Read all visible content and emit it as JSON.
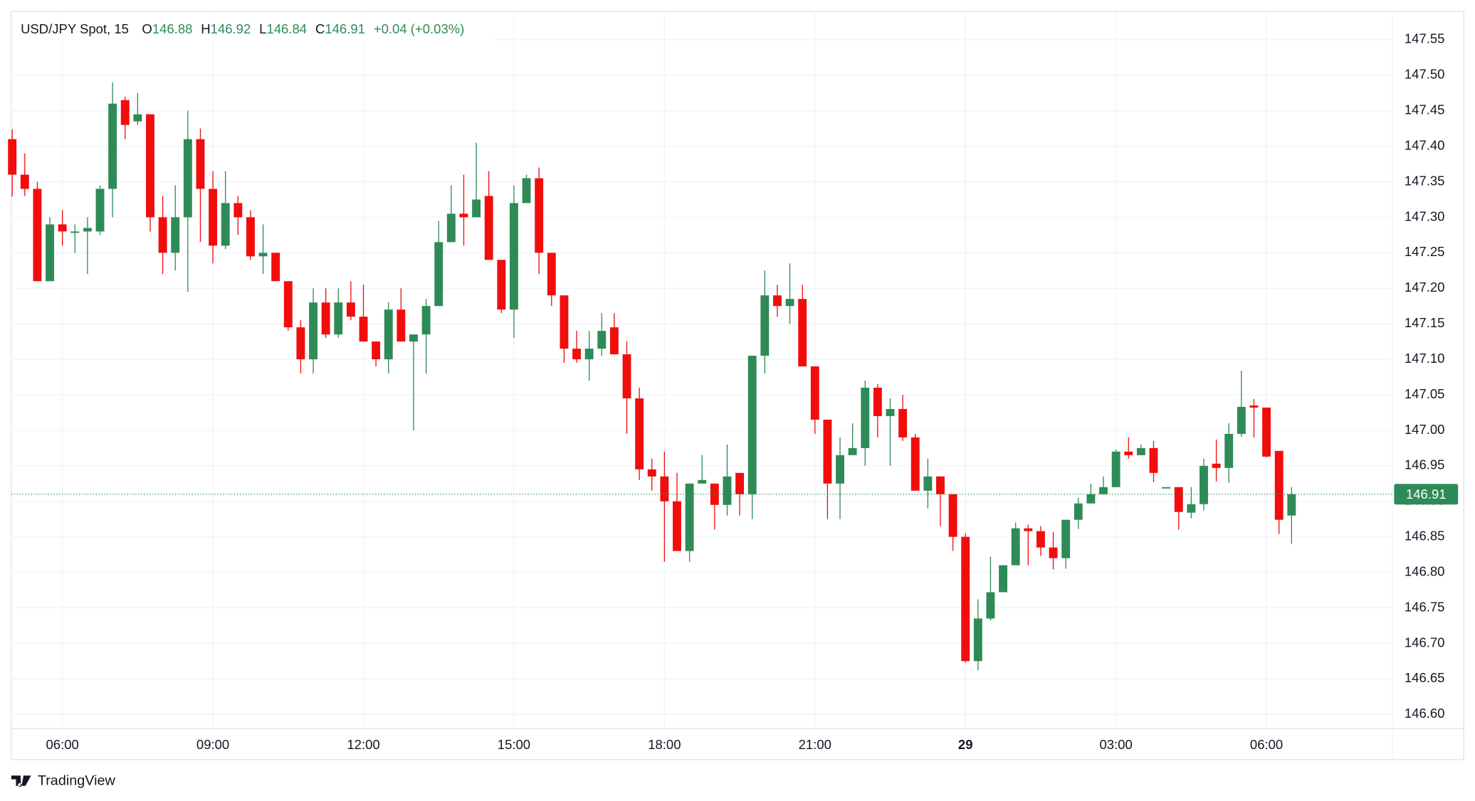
{
  "chart_data": {
    "type": "candlestick",
    "symbol": "USD/JPY Spot, 15",
    "ohlc_labels": [
      "O",
      "H",
      "L",
      "C"
    ],
    "ohlc_values": [
      146.88,
      146.92,
      146.84,
      146.91
    ],
    "change": "+0.04 (+0.03%)",
    "brand": "TradingView",
    "last_price": 146.91,
    "up_color": "#2e8b57",
    "down_color": "#f20d0d",
    "grid": true,
    "ylim": [
      146.58,
      147.59
    ],
    "yticks": [
      {
        "value": 146.6,
        "label": "146.60"
      },
      {
        "value": 146.65,
        "label": "146.65"
      },
      {
        "value": 146.7,
        "label": "146.70"
      },
      {
        "value": 146.75,
        "label": "146.75"
      },
      {
        "value": 146.8,
        "label": "146.80"
      },
      {
        "value": 146.85,
        "label": "146.85"
      },
      {
        "value": 146.9,
        "label": "146.90"
      },
      {
        "value": 146.95,
        "label": "146.95"
      },
      {
        "value": 147.0,
        "label": "147.00"
      },
      {
        "value": 147.05,
        "label": "147.05"
      },
      {
        "value": 147.1,
        "label": "147.10"
      },
      {
        "value": 147.15,
        "label": "147.15"
      },
      {
        "value": 147.2,
        "label": "147.20"
      },
      {
        "value": 147.25,
        "label": "147.25"
      },
      {
        "value": 147.3,
        "label": "147.30"
      },
      {
        "value": 147.35,
        "label": "147.35"
      },
      {
        "value": 147.4,
        "label": "147.40"
      },
      {
        "value": 147.45,
        "label": "147.45"
      },
      {
        "value": 147.5,
        "label": "147.50"
      },
      {
        "value": 147.55,
        "label": "147.55"
      }
    ],
    "categories": [
      null,
      null,
      null,
      null,
      "06:00",
      null,
      null,
      null,
      null,
      null,
      null,
      null,
      null,
      null,
      null,
      null,
      "09:00",
      null,
      null,
      null,
      null,
      null,
      null,
      null,
      null,
      null,
      null,
      null,
      "12:00",
      null,
      null,
      null,
      null,
      null,
      null,
      null,
      null,
      null,
      null,
      null,
      "15:00",
      null,
      null,
      null,
      null,
      null,
      null,
      null,
      null,
      null,
      null,
      null,
      "18:00",
      null,
      null,
      null,
      null,
      null,
      null,
      null,
      null,
      null,
      null,
      null,
      "21:00",
      null,
      null,
      null,
      null,
      null,
      null,
      null,
      null,
      null,
      null,
      null,
      "29",
      null,
      null,
      null,
      null,
      null,
      null,
      null,
      null,
      null,
      null,
      null,
      "03:00",
      null,
      null,
      null,
      null,
      null,
      null,
      null,
      null,
      null,
      null,
      null,
      "06:00",
      null,
      null
    ],
    "open": [
      147.41,
      147.36,
      147.34,
      147.21,
      147.29,
      147.28,
      147.28,
      147.28,
      147.34,
      147.465,
      147.435,
      147.445,
      147.3,
      147.25,
      147.3,
      147.41,
      147.34,
      147.26,
      147.32,
      147.3,
      147.245,
      147.25,
      147.21,
      147.145,
      147.1,
      147.18,
      147.135,
      147.18,
      147.16,
      147.125,
      147.1,
      147.17,
      147.125,
      147.135,
      147.175,
      147.265,
      147.305,
      147.3,
      147.33,
      147.24,
      147.17,
      147.32,
      147.355,
      147.25,
      147.19,
      147.115,
      147.1,
      147.115,
      147.145,
      147.107,
      147.045,
      146.945,
      146.935,
      146.9,
      146.83,
      146.925,
      146.925,
      146.895,
      146.94,
      146.91,
      147.105,
      147.19,
      147.175,
      147.185,
      147.09,
      147.015,
      146.925,
      146.965,
      146.975,
      147.06,
      147.02,
      147.03,
      146.99,
      146.915,
      146.935,
      146.91,
      146.85,
      146.675,
      146.735,
      146.772,
      146.81,
      146.862,
      146.858,
      146.835,
      146.82,
      146.874,
      146.897,
      146.91,
      146.92,
      146.97,
      146.965,
      146.975,
      146.92,
      146.92,
      146.884,
      146.896,
      146.953,
      146.947,
      146.995,
      147.035,
      147.032,
      146.971,
      146.88
    ],
    "high": [
      147.424,
      147.39,
      147.35,
      147.3,
      147.31,
      147.29,
      147.3,
      147.345,
      147.49,
      147.47,
      147.475,
      147.445,
      147.33,
      147.345,
      147.45,
      147.425,
      147.365,
      147.365,
      147.33,
      147.31,
      147.29,
      147.25,
      147.21,
      147.155,
      147.2,
      147.2,
      147.2,
      147.21,
      147.205,
      147.125,
      147.18,
      147.2,
      147.135,
      147.185,
      147.295,
      147.345,
      147.36,
      147.405,
      147.365,
      147.24,
      147.345,
      147.36,
      147.37,
      147.25,
      147.19,
      147.14,
      147.14,
      147.165,
      147.165,
      147.125,
      147.06,
      146.96,
      146.97,
      146.94,
      146.925,
      146.965,
      146.925,
      146.98,
      146.94,
      147.105,
      147.225,
      147.205,
      147.235,
      147.205,
      147.09,
      147.015,
      146.99,
      147.01,
      147.07,
      147.065,
      147.045,
      147.05,
      146.995,
      146.96,
      146.935,
      146.91,
      146.855,
      146.762,
      146.822,
      146.81,
      146.87,
      146.867,
      146.865,
      146.857,
      146.874,
      146.905,
      146.925,
      146.935,
      146.973,
      146.99,
      146.98,
      146.985,
      146.92,
      146.92,
      146.92,
      146.96,
      146.987,
      147.01,
      147.084,
      147.044,
      147.032,
      146.971,
      146.92
    ],
    "low": [
      147.329,
      147.33,
      147.21,
      147.21,
      147.26,
      147.25,
      147.22,
      147.275,
      147.3,
      147.41,
      147.43,
      147.28,
      147.22,
      147.225,
      147.195,
      147.265,
      147.235,
      147.255,
      147.275,
      147.24,
      147.22,
      147.21,
      147.14,
      147.08,
      147.08,
      147.13,
      147.13,
      147.155,
      147.125,
      147.09,
      147.08,
      147.125,
      147.0,
      147.08,
      147.175,
      147.265,
      147.26,
      147.3,
      147.24,
      147.165,
      147.13,
      147.32,
      147.22,
      147.175,
      147.095,
      147.095,
      147.07,
      147.105,
      147.107,
      146.995,
      146.93,
      146.915,
      146.815,
      146.83,
      146.815,
      146.925,
      146.86,
      146.88,
      146.88,
      146.875,
      147.08,
      147.16,
      147.15,
      147.09,
      146.995,
      146.875,
      146.875,
      146.965,
      146.95,
      146.99,
      146.95,
      146.985,
      146.915,
      146.89,
      146.865,
      146.83,
      146.673,
      146.662,
      146.732,
      146.772,
      146.81,
      146.81,
      146.823,
      146.804,
      146.805,
      146.861,
      146.897,
      146.91,
      146.92,
      146.96,
      146.965,
      146.927,
      146.92,
      146.86,
      146.876,
      146.887,
      146.928,
      146.926,
      146.991,
      146.99,
      146.962,
      146.854,
      146.84
    ],
    "close": [
      147.36,
      147.34,
      147.21,
      147.29,
      147.28,
      147.28,
      147.285,
      147.34,
      147.46,
      147.43,
      147.445,
      147.3,
      147.25,
      147.3,
      147.41,
      147.34,
      147.26,
      147.32,
      147.3,
      147.245,
      147.25,
      147.21,
      147.145,
      147.1,
      147.18,
      147.135,
      147.18,
      147.16,
      147.125,
      147.1,
      147.17,
      147.125,
      147.135,
      147.175,
      147.265,
      147.305,
      147.3,
      147.325,
      147.24,
      147.17,
      147.32,
      147.355,
      147.25,
      147.19,
      147.115,
      147.1,
      147.115,
      147.14,
      147.107,
      147.045,
      146.945,
      146.935,
      146.9,
      146.83,
      146.925,
      146.93,
      146.895,
      146.935,
      146.91,
      147.105,
      147.19,
      147.175,
      147.185,
      147.09,
      147.015,
      146.925,
      146.965,
      146.975,
      147.06,
      147.02,
      147.03,
      146.99,
      146.915,
      146.935,
      146.91,
      146.85,
      146.675,
      146.735,
      146.772,
      146.81,
      146.862,
      146.858,
      146.835,
      146.82,
      146.874,
      146.897,
      146.91,
      146.92,
      146.97,
      146.965,
      146.975,
      146.94,
      146.92,
      146.885,
      146.896,
      146.95,
      146.947,
      146.995,
      147.033,
      147.032,
      146.963,
      146.874,
      146.91
    ]
  }
}
